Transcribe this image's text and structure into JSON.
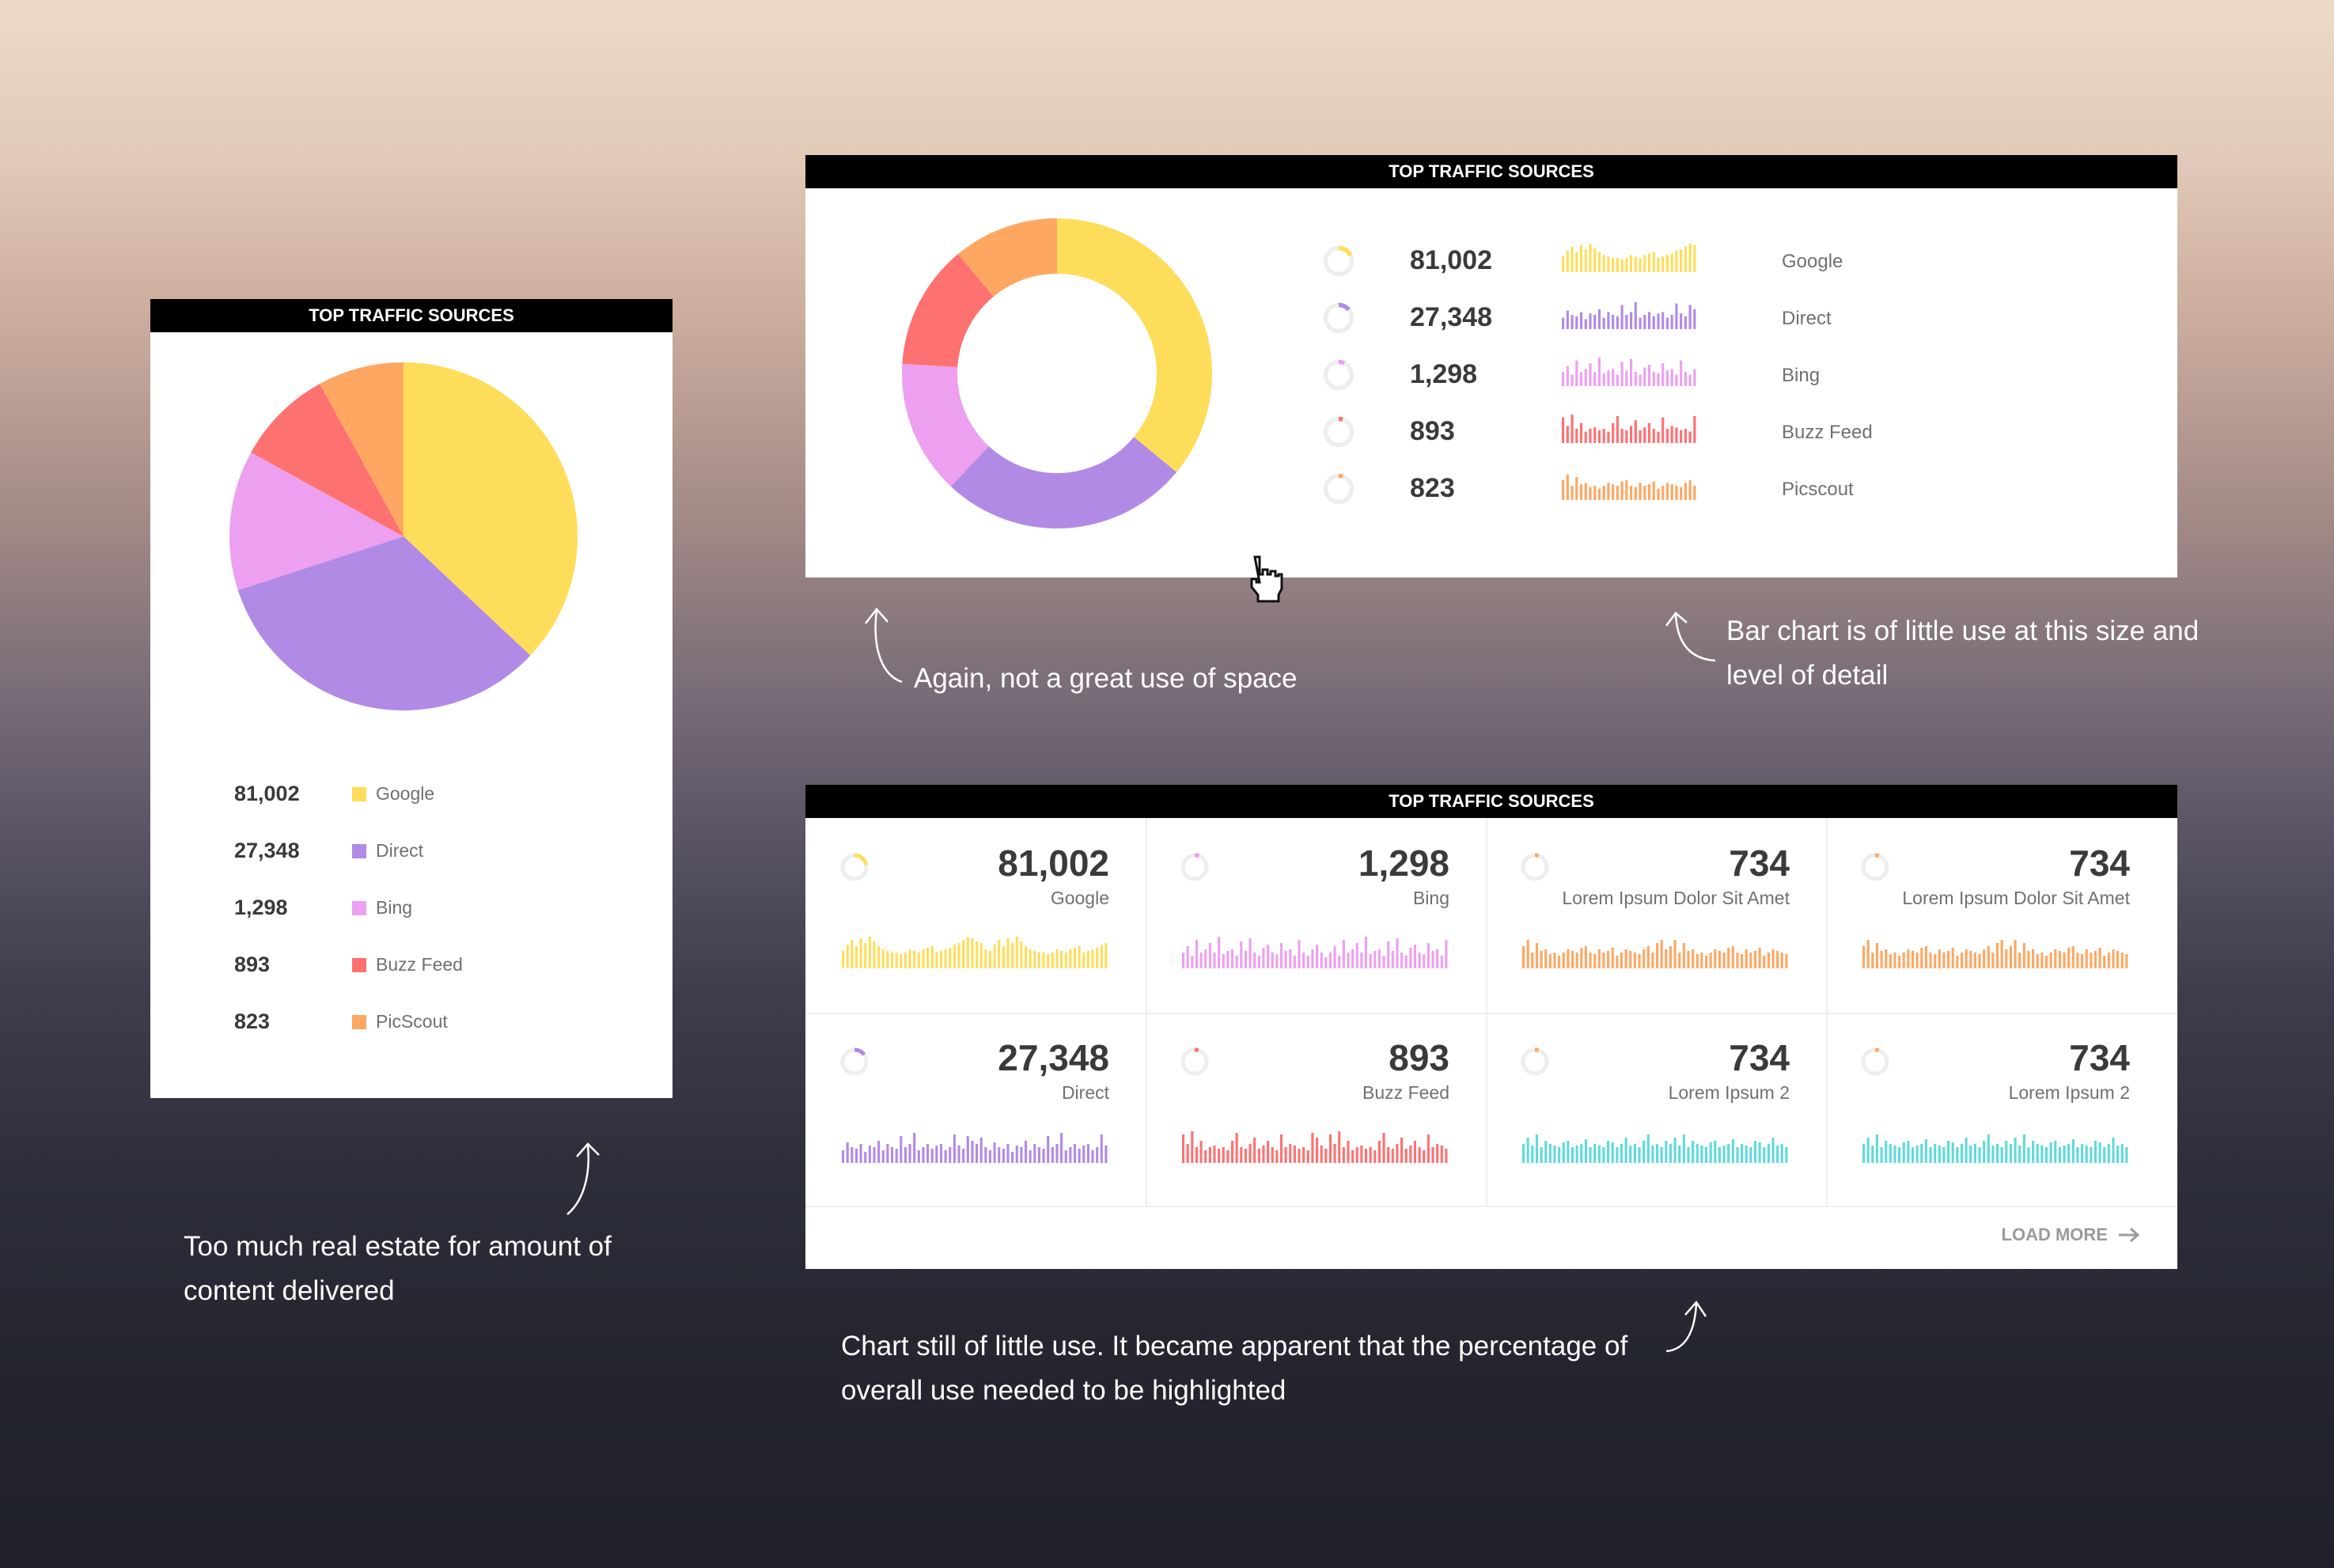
{
  "colors": {
    "google": "#fedd5b",
    "direct": "#b18ae6",
    "bing": "#eda0ef",
    "buzzfeed": "#fe7171",
    "picscout": "#fea762",
    "lorem": "#fea762",
    "lorem2": "#5fdada",
    "ring_track": "#eeeeee"
  },
  "card1": {
    "header": "TOP TRAFFIC SOURCES",
    "legend": [
      {
        "value": "81,002",
        "label": "Google",
        "color": "#fedd5b"
      },
      {
        "value": "27,348",
        "label": "Direct",
        "color": "#b18ae6"
      },
      {
        "value": "1,298",
        "label": "Bing",
        "color": "#eda0ef"
      },
      {
        "value": "893",
        "label": "Buzz Feed",
        "color": "#fe7171"
      },
      {
        "value": "823",
        "label": "PicScout",
        "color": "#fea762"
      }
    ]
  },
  "card2": {
    "header": "TOP TRAFFIC SOURCES",
    "rows": [
      {
        "value": "81,002",
        "label": "Google",
        "color": "#fedd5b",
        "share": 0.18
      },
      {
        "value": "27,348",
        "label": "Direct",
        "color": "#b18ae6",
        "share": 0.14
      },
      {
        "value": "1,298",
        "label": "Bing",
        "color": "#eda0ef",
        "share": 0.07
      },
      {
        "value": "893",
        "label": "Buzz Feed",
        "color": "#fe7171",
        "share": 0.05
      },
      {
        "value": "823",
        "label": "Picscout",
        "color": "#fea762",
        "share": 0.05
      }
    ]
  },
  "card3": {
    "header": "TOP TRAFFIC SOURCES",
    "tiles": [
      {
        "value": "81,002",
        "label": "Google",
        "color": "#fedd5b",
        "share": 0.22
      },
      {
        "value": "1,298",
        "label": "Bing",
        "color": "#eda0ef",
        "share": 0.06
      },
      {
        "value": "734",
        "label": "Lorem Ipsum Dolor Sit Amet",
        "color": "#fea762",
        "share": 0.05
      },
      {
        "value": "734",
        "label": "Lorem Ipsum Dolor Sit Amet",
        "color": "#fea762",
        "share": 0.05
      },
      {
        "value": "27,348",
        "label": "Direct",
        "color": "#b18ae6",
        "share": 0.15
      },
      {
        "value": "893",
        "label": "Buzz Feed",
        "color": "#fe7171",
        "share": 0.05
      },
      {
        "value": "734",
        "label": "Lorem Ipsum 2",
        "color": "#fea762",
        "share": 0.05
      },
      {
        "value": "734",
        "label": "Lorem Ipsum 2",
        "color": "#fea762",
        "share": 0.05
      }
    ],
    "tile_bar_colors": [
      "#fedd5b",
      "#eda0ef",
      "#fea762",
      "#fea762",
      "#b18ae6",
      "#fe7171",
      "#5fdada",
      "#5fdada"
    ],
    "load_more": "LOAD MORE"
  },
  "notes": {
    "card1": [
      "Too much real estate for amount of",
      "content delivered"
    ],
    "card2_left": "Again, not a great use of space",
    "card2_right": [
      "Bar chart is of little use at this size and",
      "level of detail"
    ],
    "card3": [
      "Chart still of little use. It became apparent that the percentage of",
      "overall use needed to be highlighted"
    ]
  },
  "chart_data": [
    {
      "type": "pie",
      "title": "TOP TRAFFIC SOURCES",
      "categories": [
        "Google",
        "Direct",
        "Bing",
        "Buzz Feed",
        "PicScout"
      ],
      "values": [
        37,
        33,
        13,
        9,
        8
      ],
      "colors": [
        "#fedd5b",
        "#b18ae6",
        "#eda0ef",
        "#fe7171",
        "#fea762"
      ]
    },
    {
      "type": "pie",
      "title": "TOP TRAFFIC SOURCES",
      "categories": [
        "Google",
        "Direct",
        "Bing",
        "Buzz Feed",
        "Picscout"
      ],
      "values": [
        36,
        26,
        14,
        13,
        11
      ],
      "colors": [
        "#fedd5b",
        "#b18ae6",
        "#eda0ef",
        "#fe7171",
        "#fea762"
      ],
      "donut": true
    }
  ],
  "sparks": {
    "google": [
      0.55,
      0.75,
      0.9,
      0.7,
      0.95,
      0.8,
      1.0,
      0.85,
      0.7,
      0.6,
      0.55,
      0.5,
      0.5,
      0.45,
      0.5,
      0.6,
      0.55,
      0.5,
      0.6,
      0.65,
      0.7,
      0.5,
      0.55,
      0.6,
      0.65,
      0.75,
      0.8,
      0.9,
      1.0,
      0.95,
      0.85,
      0.8,
      0.6
    ],
    "direct": [
      0.4,
      0.65,
      0.5,
      0.45,
      0.6,
      0.35,
      0.55,
      0.5,
      0.7,
      0.4,
      0.6,
      0.5,
      0.45,
      0.85,
      0.5,
      0.6,
      0.95,
      0.4,
      0.5,
      0.6,
      0.45,
      0.55,
      0.6,
      0.4,
      0.5,
      0.9,
      0.55,
      0.45,
      0.85,
      0.7,
      0.6,
      0.8,
      0.5
    ],
    "bing": [
      0.5,
      0.7,
      0.4,
      0.9,
      0.5,
      0.6,
      0.8,
      0.5,
      1.0,
      0.45,
      0.55,
      0.6,
      0.4,
      0.85,
      0.55,
      0.95,
      0.5,
      0.4,
      0.65,
      0.75,
      0.5,
      0.45,
      0.8,
      0.55,
      0.6,
      0.4,
      0.9,
      0.5,
      0.4,
      0.6,
      0.75,
      0.5,
      0.35
    ],
    "buzzfeed": [
      0.9,
      0.6,
      1.0,
      0.5,
      0.7,
      0.4,
      0.5,
      0.55,
      0.45,
      0.5,
      0.4,
      0.7,
      0.95,
      0.5,
      0.45,
      0.6,
      0.8,
      0.45,
      0.55,
      0.7,
      0.5,
      0.4,
      0.9,
      0.5,
      0.6,
      0.55,
      0.45,
      0.5,
      0.4,
      0.95,
      0.8,
      0.55,
      0.45
    ],
    "picscout": [
      0.7,
      0.9,
      0.5,
      0.8,
      0.55,
      0.6,
      0.45,
      0.5,
      0.4,
      0.5,
      0.6,
      0.55,
      0.5,
      0.65,
      0.7,
      0.5,
      0.45,
      0.6,
      0.5,
      0.55,
      0.65,
      0.4,
      0.5,
      0.6,
      0.55,
      0.5,
      0.45,
      0.6,
      0.7,
      0.5,
      0.8,
      0.9,
      0.6
    ],
    "lorem2": [
      0.6,
      0.8,
      0.55,
      0.9,
      0.5,
      0.7,
      0.6,
      0.55,
      0.5,
      0.65,
      0.7,
      0.5,
      0.55,
      0.6,
      0.75,
      0.5,
      0.6,
      0.55,
      0.5,
      0.7,
      0.65,
      0.5,
      0.6,
      0.8,
      0.55,
      0.6,
      0.5,
      0.7,
      0.9,
      0.55,
      0.6,
      0.5,
      0.7
    ]
  }
}
